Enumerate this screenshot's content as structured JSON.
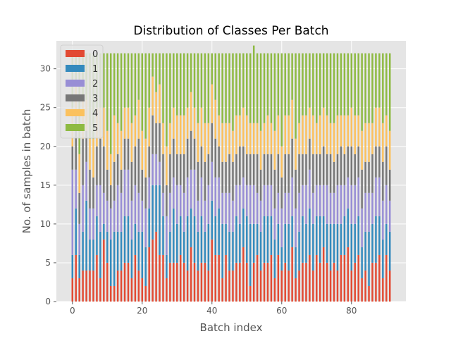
{
  "chart_data": {
    "type": "bar",
    "stacked": true,
    "title": "Distribution of Classes Per Batch",
    "xlabel": "Batch index",
    "ylabel": "No. of samples in batch",
    "xlim": [
      -4.6,
      95.6
    ],
    "ylim": [
      0,
      33.6
    ],
    "xticks": [
      0,
      20,
      40,
      60,
      80
    ],
    "yticks": [
      0,
      5,
      10,
      15,
      20,
      25,
      30
    ],
    "grid": true,
    "legend_position": "top-left",
    "colors": [
      "#E24A33",
      "#348ABD",
      "#988ED5",
      "#777777",
      "#FBC15E",
      "#8EBA42"
    ],
    "x": [
      0,
      1,
      2,
      3,
      4,
      5,
      6,
      7,
      8,
      9,
      10,
      11,
      12,
      13,
      14,
      15,
      16,
      17,
      18,
      19,
      20,
      21,
      22,
      23,
      24,
      25,
      26,
      27,
      28,
      29,
      30,
      31,
      32,
      33,
      34,
      35,
      36,
      37,
      38,
      39,
      40,
      41,
      42,
      43,
      44,
      45,
      46,
      47,
      48,
      49,
      50,
      51,
      52,
      53,
      54,
      55,
      56,
      57,
      58,
      59,
      60,
      61,
      62,
      63,
      64,
      65,
      66,
      67,
      68,
      69,
      70,
      71,
      72,
      73,
      74,
      75,
      76,
      77,
      78,
      79,
      80,
      81,
      82,
      83,
      84,
      85,
      86,
      87,
      88,
      89,
      90,
      91
    ],
    "series": [
      {
        "name": "0",
        "values": [
          3,
          6,
          3,
          4,
          4,
          4,
          4,
          6,
          3,
          8,
          5,
          2,
          2,
          4,
          4,
          5,
          5,
          3,
          6,
          4,
          3,
          2,
          7,
          8,
          9,
          6,
          6,
          3,
          5,
          5,
          5,
          6,
          5,
          4,
          7,
          5,
          4,
          5,
          5,
          4,
          8,
          6,
          6,
          3,
          6,
          4,
          4,
          5,
          5,
          7,
          5,
          2,
          5,
          6,
          4,
          5,
          5,
          6,
          3,
          6,
          4,
          5,
          4,
          7,
          3,
          4,
          5,
          5,
          6,
          4,
          6,
          5,
          7,
          5,
          4,
          5,
          4,
          6,
          6,
          7,
          4,
          5,
          6,
          3,
          4,
          2,
          5,
          5,
          6,
          3,
          6,
          4
        ]
      },
      {
        "name": "1",
        "values": [
          3,
          6,
          3,
          5,
          9,
          4,
          4,
          5,
          6,
          2,
          4,
          6,
          7,
          5,
          5,
          6,
          6,
          5,
          4,
          5,
          6,
          5,
          5,
          7,
          6,
          9,
          5,
          3,
          4,
          7,
          5,
          5,
          4,
          7,
          5,
          6,
          5,
          6,
          4,
          6,
          5,
          5,
          6,
          7,
          4,
          5,
          5,
          6,
          5,
          5,
          6,
          8,
          5,
          4,
          5,
          6,
          6,
          5,
          5,
          4,
          3,
          5,
          6,
          4,
          4,
          5,
          6,
          5,
          6,
          6,
          5,
          6,
          4,
          5,
          6,
          5,
          6,
          4,
          5,
          5,
          6,
          5,
          5,
          4,
          5,
          7,
          5,
          6,
          5,
          5,
          4,
          5
        ]
      },
      {
        "name": "2",
        "values": [
          11,
          5,
          4,
          6,
          5,
          4,
          4,
          4,
          6,
          4,
          4,
          4,
          4,
          6,
          5,
          6,
          6,
          5,
          5,
          5,
          4,
          5,
          4,
          4,
          4,
          3,
          3,
          5,
          5,
          4,
          5,
          4,
          5,
          5,
          5,
          6,
          4,
          5,
          4,
          5,
          5,
          5,
          4,
          4,
          4,
          5,
          4,
          4,
          5,
          4,
          4,
          5,
          5,
          4,
          4,
          4,
          4,
          4,
          4,
          4,
          5,
          4,
          4,
          5,
          5,
          5,
          4,
          5,
          5,
          4,
          4,
          4,
          4,
          5,
          4,
          4,
          5,
          5,
          4,
          4,
          5,
          5,
          5,
          5,
          5,
          5,
          4,
          5,
          5,
          5,
          5,
          4
        ]
      },
      {
        "name": "3",
        "values": [
          3,
          7,
          4,
          6,
          4,
          5,
          4,
          5,
          6,
          6,
          4,
          3,
          5,
          4,
          3,
          4,
          4,
          5,
          5,
          7,
          4,
          4,
          4,
          5,
          4,
          5,
          5,
          4,
          5,
          5,
          4,
          4,
          5,
          5,
          5,
          4,
          5,
          4,
          5,
          4,
          5,
          5,
          4,
          4,
          4,
          5,
          5,
          4,
          5,
          4,
          4,
          4,
          4,
          5,
          4,
          4,
          4,
          4,
          5,
          5,
          4,
          5,
          5,
          5,
          5,
          5,
          4,
          4,
          4,
          5,
          4,
          4,
          5,
          4,
          5,
          4,
          4,
          5,
          4,
          4,
          5,
          4,
          4,
          5,
          4,
          4,
          5,
          4,
          4,
          5,
          5,
          4
        ]
      },
      {
        "name": "4",
        "values": [
          5,
          4,
          5,
          5,
          4,
          4,
          5,
          5,
          4,
          5,
          5,
          4,
          6,
          4,
          5,
          4,
          4,
          5,
          4,
          5,
          5,
          5,
          5,
          5,
          4,
          5,
          4,
          5,
          4,
          4,
          5,
          5,
          5,
          4,
          5,
          4,
          5,
          5,
          5,
          4,
          5,
          5,
          4,
          5,
          5,
          4,
          4,
          5,
          4,
          5,
          5,
          4,
          4,
          4,
          5,
          4,
          5,
          4,
          5,
          5,
          4,
          5,
          5,
          5,
          4,
          4,
          5,
          5,
          4,
          5,
          4,
          5,
          5,
          5,
          4,
          5,
          5,
          4,
          5,
          4,
          5,
          5,
          4,
          5,
          5,
          5,
          4,
          5,
          5,
          5,
          4,
          5
        ]
      },
      {
        "name": "5",
        "values": [
          7,
          4,
          13,
          6,
          6,
          11,
          11,
          7,
          7,
          7,
          10,
          13,
          8,
          9,
          10,
          7,
          7,
          9,
          8,
          6,
          10,
          11,
          7,
          3,
          5,
          4,
          9,
          12,
          9,
          7,
          8,
          8,
          8,
          7,
          5,
          7,
          9,
          7,
          9,
          9,
          4,
          6,
          8,
          9,
          9,
          9,
          10,
          8,
          8,
          7,
          8,
          9,
          10,
          9,
          10,
          9,
          8,
          9,
          10,
          8,
          12,
          8,
          8,
          6,
          11,
          9,
          8,
          8,
          7,
          8,
          9,
          8,
          7,
          8,
          9,
          9,
          8,
          8,
          8,
          8,
          7,
          8,
          8,
          10,
          9,
          9,
          9,
          7,
          7,
          9,
          8,
          10
        ]
      }
    ]
  }
}
